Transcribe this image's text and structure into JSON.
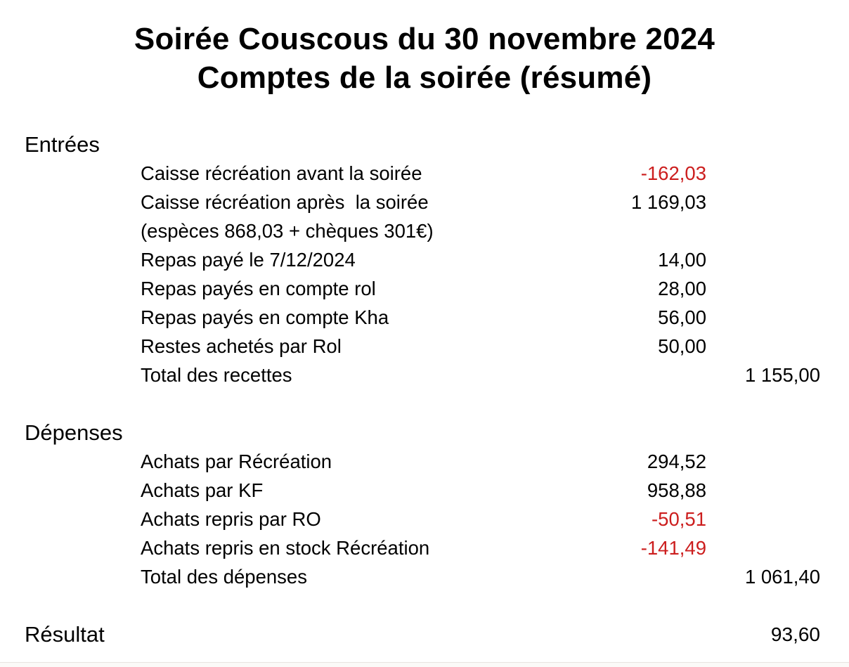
{
  "title": {
    "line1": "Soirée Couscous du 30 novembre 2024",
    "line2": "Comptes de la soirée (résumé)"
  },
  "colors": {
    "negative_value": "#cc1e1e",
    "text": "#000000",
    "background": "#ffffff"
  },
  "sections": [
    {
      "name": "Entrées",
      "rows": [
        {
          "label": "Caisse récréation avant la soirée",
          "value": "-162,03",
          "negative": true
        },
        {
          "label": "Caisse récréation après  la soirée",
          "value": "1 169,03",
          "negative": false
        },
        {
          "label": "(espèces 868,03 + chèques 301€)",
          "value": "",
          "negative": false
        },
        {
          "label": "Repas payé le 7/12/2024",
          "value": "14,00",
          "negative": false
        },
        {
          "label": "Repas payés en compte rol",
          "value": "28,00",
          "negative": false
        },
        {
          "label": "Repas payés en compte Kha",
          "value": "56,00",
          "negative": false
        },
        {
          "label": "Restes achetés par Rol",
          "value": "50,00",
          "negative": false
        },
        {
          "label": "Total des recettes",
          "total": "1 155,00"
        }
      ]
    },
    {
      "name": "Dépenses",
      "rows": [
        {
          "label": "Achats par Récréation",
          "value": "294,52",
          "negative": false
        },
        {
          "label": "Achats par KF",
          "value": "958,88",
          "negative": false
        },
        {
          "label": "Achats repris par RO",
          "value": "-50,51",
          "negative": true
        },
        {
          "label": "Achats repris en stock Récréation",
          "value": "-141,49",
          "negative": true
        },
        {
          "label": "Total des dépenses",
          "total": "1 061,40"
        }
      ]
    }
  ],
  "result": {
    "label": "Résultat",
    "value": "93,60"
  }
}
